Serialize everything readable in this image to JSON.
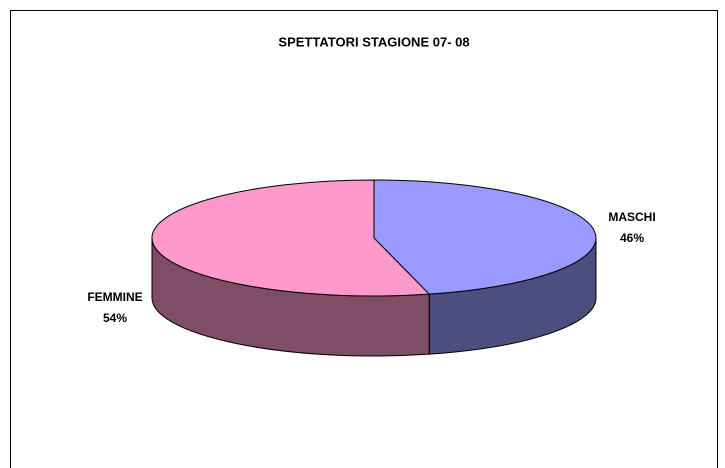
{
  "chart_data": {
    "type": "pie",
    "title": "SPETTATORI STAGIONE 07- 08",
    "categories": [
      "MASCHI",
      "FEMMINE"
    ],
    "values": [
      46,
      54
    ],
    "value_labels": [
      "46%",
      "54%"
    ],
    "colors": [
      "#9999ff",
      "#ff99cc"
    ]
  }
}
